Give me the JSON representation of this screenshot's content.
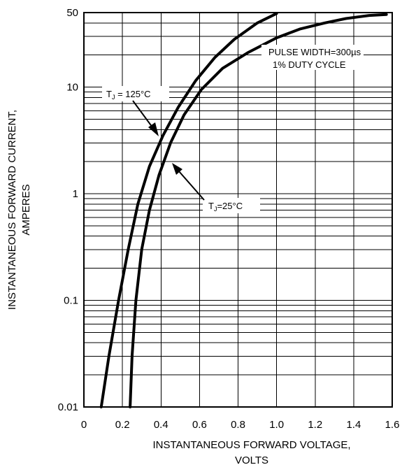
{
  "chart_data": {
    "type": "line",
    "title": "",
    "xlabel": "INSTANTANEOUS FORWARD VOLTAGE,",
    "xlabel_line2": "VOLTS",
    "ylabel": "INSTANTANEOUS FORWARD CURRENT,",
    "ylabel_line2": "AMPERES",
    "x_scale": "linear",
    "y_scale": "log",
    "xlim": [
      0,
      1.6
    ],
    "ylim": [
      0.01,
      50
    ],
    "grid": true,
    "x_ticks": [
      "0",
      "0.2",
      "0.4",
      "0.6",
      "0.8",
      "1.0",
      "1.2",
      "1.4",
      "1.6"
    ],
    "y_ticks": [
      "0.01",
      "0.1",
      "1",
      "10",
      "50"
    ],
    "series": [
      {
        "name": "",
        "x": [
          0.09,
          0.13,
          0.18,
          0.23,
          0.28,
          0.34,
          0.41,
          0.49,
          0.58,
          0.68,
          0.78,
          0.9,
          1.0
        ],
        "y": [
          0.01,
          0.03,
          0.1,
          0.3,
          0.8,
          1.8,
          3.5,
          6.5,
          11.5,
          19,
          28,
          40,
          49
        ]
      },
      {
        "name": "",
        "x": [
          0.24,
          0.25,
          0.27,
          0.3,
          0.34,
          0.39,
          0.45,
          0.52,
          0.61,
          0.72,
          0.85,
          1.0,
          1.12,
          1.25,
          1.36,
          1.48,
          1.57
        ],
        "y": [
          0.01,
          0.03,
          0.1,
          0.3,
          0.7,
          1.5,
          3.0,
          5.5,
          9.5,
          15,
          21,
          29,
          35,
          40,
          44,
          47,
          48
        ]
      }
    ],
    "annotations": {
      "tj125_prefix": "T",
      "tj125_sub": "J",
      "tj125_suffix": " = 125°C",
      "tj25_prefix": "T",
      "tj25_sub": "J",
      "tj25_suffix": "=25°C",
      "pulse_line1": "PULSE WIDTH=300µs",
      "pulse_line2": "1% DUTY CYCLE"
    }
  }
}
